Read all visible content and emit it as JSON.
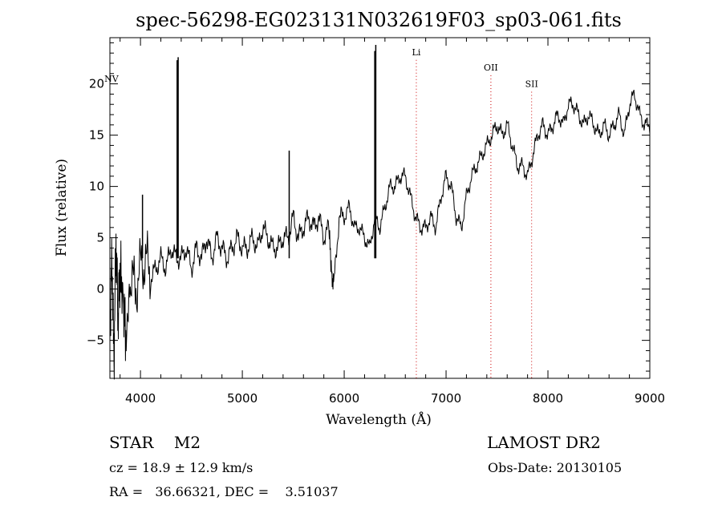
{
  "chart_data": {
    "type": "line",
    "title": "spec-56298-EG023131N032619F03_sp03-061.fits",
    "xlabel": "Wavelength (Å)",
    "ylabel": "Flux (relative)",
    "xlim": [
      3700,
      9000
    ],
    "ylim": [
      -8.7,
      24.5
    ],
    "x_ticks": [
      4000,
      5000,
      6000,
      7000,
      8000,
      9000
    ],
    "y_ticks": [
      -5,
      0,
      5,
      10,
      15,
      20
    ],
    "grid": false,
    "series": [
      {
        "x": [
          3700,
          3720,
          3740,
          3760,
          3780,
          3800,
          3830,
          3860,
          3900,
          3950,
          4000,
          4050,
          4100,
          4150,
          4200,
          4250,
          4300,
          4350,
          4400,
          4450,
          4500,
          4550,
          4600,
          4650,
          4700,
          4750,
          4800,
          4850,
          4900,
          4950,
          5000,
          5050,
          5100,
          5150,
          5200,
          5250,
          5300,
          5350,
          5400,
          5450,
          5500,
          5550,
          5600,
          5650,
          5700,
          5750,
          5800,
          5850,
          5880,
          5900,
          5950,
          6000,
          6050,
          6100,
          6150,
          6200,
          6250,
          6300,
          6350,
          6400,
          6450,
          6500,
          6550,
          6600,
          6650,
          6700,
          6750,
          6800,
          6850,
          6900,
          6950,
          7000,
          7050,
          7100,
          7150,
          7200,
          7250,
          7300,
          7350,
          7400,
          7450,
          7500,
          7550,
          7600,
          7650,
          7700,
          7750,
          7800,
          7850,
          7900,
          7950,
          8000,
          8050,
          8100,
          8150,
          8200,
          8250,
          8300,
          8350,
          8400,
          8450,
          8500,
          8550,
          8600,
          8650,
          8700,
          8750,
          8800,
          8850,
          8900,
          8950,
          9000
        ],
        "y": [
          -4,
          3,
          -7,
          5,
          -3,
          2,
          -1,
          -5,
          1,
          0,
          2,
          3,
          1,
          2,
          3,
          2,
          4,
          3,
          3,
          4,
          2,
          4,
          3,
          5,
          3,
          5,
          4,
          3,
          4,
          5,
          4,
          4,
          5,
          4,
          6,
          5,
          4,
          4,
          5,
          5,
          7,
          5,
          6,
          7,
          6,
          7,
          5,
          6,
          1,
          0.5,
          7,
          7,
          8,
          6,
          6,
          5,
          4,
          7,
          6,
          8,
          10,
          10,
          11,
          11,
          9,
          7,
          6,
          6,
          7,
          6,
          9,
          11,
          10,
          7,
          6,
          9,
          11,
          12,
          13,
          14,
          15,
          16,
          15,
          16,
          14,
          12,
          12,
          11,
          13,
          15,
          16,
          15,
          16,
          17,
          16,
          18,
          18,
          17,
          16,
          17,
          16,
          15,
          16,
          15,
          16,
          17,
          15,
          18,
          19,
          17,
          16,
          16
        ]
      }
    ],
    "spikes": [
      {
        "x": 4360,
        "y": 22.3
      },
      {
        "x": 4370,
        "y": 22.6
      },
      {
        "x": 5460,
        "y": 13.5
      },
      {
        "x": 6300,
        "y": 23.2
      },
      {
        "x": 6310,
        "y": 23.8
      },
      {
        "x": 4020,
        "y": 9.2
      }
    ],
    "lines": [
      {
        "label": "NV",
        "x": 3715,
        "dotted": false,
        "label_y": 20.2
      },
      {
        "label": "Li",
        "x": 6708,
        "dotted": true,
        "label_y": 22.8
      },
      {
        "label": "OII",
        "x": 7440,
        "dotted": true,
        "label_y": 21.3
      },
      {
        "label": "SII",
        "x": 7840,
        "dotted": true,
        "label_y": 19.7
      }
    ]
  },
  "info": {
    "object": "STAR    M2",
    "survey": "LAMOST DR2",
    "cz": "cz = 18.9 ± 12.9 km/s",
    "obs_date": "Obs-Date: 20130105",
    "radec": "RA =   36.66321, DEC =    3.51037"
  }
}
